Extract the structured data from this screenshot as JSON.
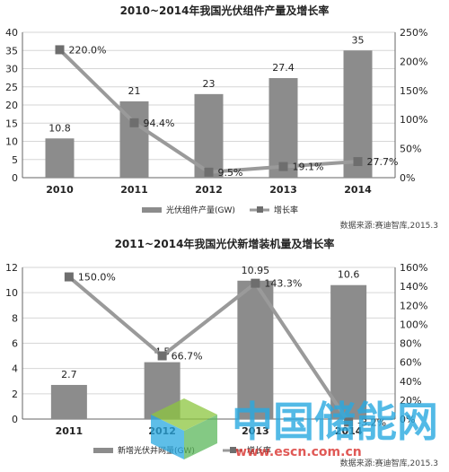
{
  "chart_data": [
    {
      "type": "bar",
      "title": "2010~2014年我国光伏组件产量及增长率",
      "categories": [
        "2010",
        "2011",
        "2012",
        "2013",
        "2014"
      ],
      "series": [
        {
          "name": "光伏组件产量(GW)",
          "kind": "bar",
          "values": [
            10.8,
            21,
            23,
            27.4,
            35
          ],
          "labels": [
            "10.8",
            "21",
            "23",
            "27.4",
            "35"
          ]
        },
        {
          "name": "增长率",
          "kind": "line",
          "axis": "right",
          "values": [
            220.0,
            94.4,
            9.5,
            19.1,
            27.7
          ],
          "labels": [
            "220.0%",
            "94.4%",
            "9.5%",
            "19.1%",
            "27.7%"
          ]
        }
      ],
      "left_axis": {
        "min": 0,
        "max": 40,
        "ticks": [
          "0",
          "5",
          "10",
          "15",
          "20",
          "25",
          "30",
          "35",
          "40"
        ]
      },
      "right_axis": {
        "min": 0,
        "max": 250,
        "ticks": [
          "0%",
          "50%",
          "100%",
          "150%",
          "200%",
          "250%"
        ]
      },
      "legend_position": "bottom",
      "source": "数据来源:赛迪智库,2015.3",
      "colors": {
        "bar": "#8c8c8c",
        "line": "#9a9a9a",
        "marker": "#6e6e6e"
      }
    },
    {
      "type": "bar",
      "title": "2011~2014年我国光伏新增装机量及增长率",
      "categories": [
        "2011",
        "2012",
        "2013",
        "2014"
      ],
      "series": [
        {
          "name": "新增光伏并网量(GW)",
          "kind": "bar",
          "values": [
            2.7,
            4.5,
            10.95,
            10.6
          ],
          "labels": [
            "2.7",
            "4.5",
            "10.95",
            "10.6"
          ]
        },
        {
          "name": "增长率",
          "kind": "line",
          "axis": "right",
          "values": [
            150.0,
            66.7,
            143.3,
            -3.2
          ],
          "labels": [
            "150.0%",
            "66.7%",
            "143.3%",
            "-3.2%"
          ]
        }
      ],
      "left_axis": {
        "min": 0,
        "max": 12,
        "ticks": [
          "0",
          "2",
          "4",
          "6",
          "8",
          "10",
          "12"
        ]
      },
      "right_axis": {
        "min": 0,
        "max": 160,
        "ticks": [
          "0%",
          "20%",
          "40%",
          "60%",
          "80%",
          "100%",
          "120%",
          "140%",
          "160%"
        ]
      },
      "legend_position": "bottom",
      "source": "数据来源:赛迪智库,2015.3",
      "colors": {
        "bar": "#8c8c8c",
        "line": "#9a9a9a",
        "marker": "#6e6e6e"
      }
    }
  ],
  "watermark": {
    "text": "中国储能网",
    "url": "www.escn.com.cn",
    "colors": {
      "blue": "#29a9e1",
      "green": "#8dc63f"
    }
  }
}
